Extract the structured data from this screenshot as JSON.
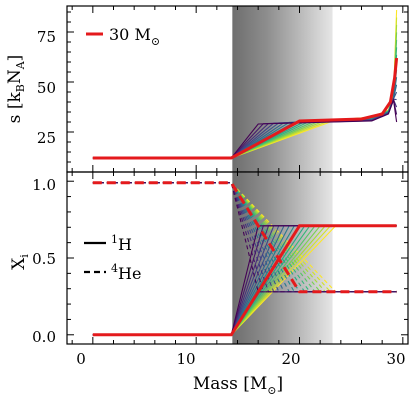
{
  "chart_data": [
    {
      "type": "line",
      "panel": "top",
      "ylabel": "s [k_B N_A]",
      "ylabel_parts": {
        "main": "s [k",
        "sub1": "B",
        "mid": "N",
        "sub2": "A",
        "end": "]"
      },
      "xlim": [
        -2.5,
        30.5
      ],
      "ylim": [
        5,
        88
      ],
      "yticks": [
        25,
        50,
        75
      ],
      "ytick_labels": [
        "25",
        "50",
        "75"
      ],
      "shaded_mass_range": [
        13.5,
        23.2
      ],
      "legend": {
        "location": "upper-left",
        "label_main": "30 M",
        "label_sub": "⊙",
        "color": "#e41a1c"
      },
      "highlight_series": {
        "name": "30 M⊙",
        "color": "#e41a1c",
        "x": [
          0,
          13.4,
          20,
          26,
          28,
          28.8,
          29.2,
          29.4
        ],
        "y": [
          12,
          12,
          30.5,
          31.5,
          34,
          40,
          52,
          62
        ]
      },
      "family": {
        "count": 16,
        "colormap": "viridis",
        "s_core": 12,
        "x_start": 13.4,
        "turn_x_range": [
          16,
          23.5
        ],
        "plateau_y_range": [
          29,
          31
        ],
        "tip_x": 29.4,
        "tip_y_range": [
          30,
          86
        ]
      }
    },
    {
      "type": "line",
      "panel": "bottom",
      "xlabel": "Mass [M⊙]",
      "xlabel_parts": {
        "main": "Mass [M",
        "sub": "⊙",
        "end": "]"
      },
      "ylabel": "X_i",
      "ylabel_parts": {
        "main": "X",
        "sub": "i"
      },
      "xlim": [
        -2.5,
        30.5
      ],
      "ylim": [
        -0.06,
        1.06
      ],
      "xticks": [
        0,
        10,
        20,
        30
      ],
      "xtick_labels": [
        "0",
        "10",
        "20",
        "30"
      ],
      "yticks": [
        0.0,
        0.5,
        1.0
      ],
      "ytick_labels": [
        "0.0",
        "0.5",
        "1.0"
      ],
      "legend": [
        {
          "label_sup": "1",
          "label_main": "H",
          "style": "solid"
        },
        {
          "label_sup": "4",
          "label_main": "He",
          "style": "dashed"
        }
      ],
      "highlight_series": [
        {
          "name": "H",
          "color": "#e41a1c",
          "style": "solid",
          "x": [
            0,
            13.4,
            20,
            29.4
          ],
          "y": [
            0.0,
            0.0,
            0.71,
            0.71
          ]
        },
        {
          "name": "He",
          "color": "#e41a1c",
          "style": "dashed",
          "x": [
            0,
            13.4,
            20,
            29.4
          ],
          "y": [
            0.99,
            0.99,
            0.28,
            0.28
          ]
        }
      ],
      "family": {
        "count": 16,
        "colormap": "viridis",
        "x_start": 13.4,
        "turn_x_range": [
          16,
          23.5
        ],
        "H_plateau": 0.71,
        "He_plateau": 0.28,
        "x_end": 29.4
      }
    }
  ]
}
